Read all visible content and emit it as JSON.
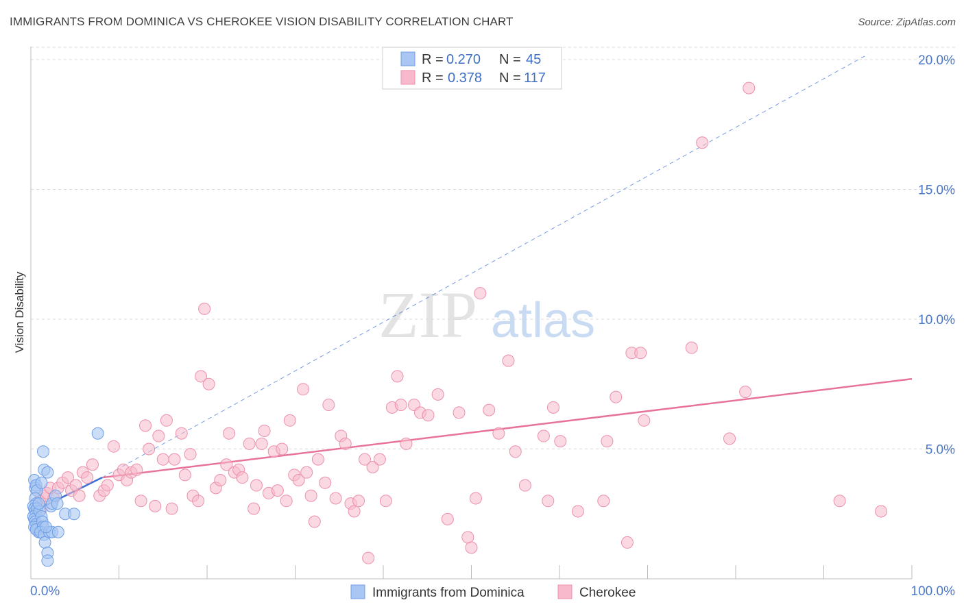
{
  "header": {
    "title": "IMMIGRANTS FROM DOMINICA VS CHEROKEE VISION DISABILITY CORRELATION CHART",
    "source": "Source: ZipAtlas.com"
  },
  "legend": {
    "r_label": "R =",
    "n_label": "N =",
    "series": [
      {
        "r": "0.270",
        "n": "45"
      },
      {
        "r": "0.378",
        "n": "117"
      }
    ]
  },
  "watermark": {
    "zip": "ZIP",
    "atlas": "atlas"
  },
  "colors": {
    "blue_fill": "#a9c7f2",
    "blue_stroke": "#6d9ee6",
    "blue_line": "#3b6fd6",
    "pink_fill": "#f7b9cb",
    "pink_stroke": "#ec8fab",
    "pink_line": "#e8739a",
    "grid": "#d8d8d8",
    "axis_text": "#4a78c8"
  },
  "chart_data": {
    "type": "scatter",
    "title": "IMMIGRANTS FROM DOMINICA VS CHEROKEE VISION DISABILITY CORRELATION CHART",
    "xlabel": "",
    "ylabel": "Vision Disability",
    "xlim": [
      0,
      100
    ],
    "ylim": [
      0,
      20.5
    ],
    "x_tick_labels": [
      "0.0%",
      "100.0%"
    ],
    "y_ticks": [
      5,
      10,
      15,
      20
    ],
    "y_tick_labels": [
      "5.0%",
      "10.0%",
      "15.0%",
      "20.0%"
    ],
    "series": [
      {
        "name": "Immigrants from Dominica",
        "R": 0.27,
        "N": 45,
        "trend": {
          "x": [
            0.3,
            8.1
          ],
          "y": [
            2.6,
            3.9
          ],
          "extended_x": [
            8.1,
            95
          ],
          "extended_y": [
            3.9,
            20.2
          ]
        },
        "points": [
          [
            0.4,
            3.8
          ],
          [
            0.5,
            3.5
          ],
          [
            0.6,
            3.6
          ],
          [
            0.7,
            3.4
          ],
          [
            0.5,
            3.1
          ],
          [
            0.6,
            2.9
          ],
          [
            0.3,
            2.8
          ],
          [
            0.4,
            2.7
          ],
          [
            0.5,
            2.6
          ],
          [
            0.6,
            2.5
          ],
          [
            0.7,
            2.7
          ],
          [
            0.3,
            2.4
          ],
          [
            0.4,
            2.3
          ],
          [
            0.5,
            2.2
          ],
          [
            0.6,
            2.1
          ],
          [
            0.7,
            2.0
          ],
          [
            0.8,
            1.9
          ],
          [
            0.9,
            1.8
          ],
          [
            0.4,
            2.0
          ],
          [
            0.6,
            1.9
          ],
          [
            1.0,
            2.6
          ],
          [
            1.2,
            2.4
          ],
          [
            1.3,
            2.2
          ],
          [
            1.4,
            2.0
          ],
          [
            1.1,
            1.8
          ],
          [
            1.5,
            1.7
          ],
          [
            1.6,
            1.4
          ],
          [
            1.9,
            1.0
          ],
          [
            1.9,
            0.7
          ],
          [
            1.2,
            3.7
          ],
          [
            1.5,
            4.2
          ],
          [
            1.9,
            4.1
          ],
          [
            1.4,
            4.9
          ],
          [
            2.3,
            2.8
          ],
          [
            2.4,
            2.9
          ],
          [
            2.8,
            3.2
          ],
          [
            3.0,
            2.9
          ],
          [
            2.1,
            1.8
          ],
          [
            2.4,
            1.8
          ],
          [
            3.1,
            1.8
          ],
          [
            3.9,
            2.5
          ],
          [
            4.9,
            2.5
          ],
          [
            7.6,
            5.6
          ],
          [
            0.9,
            2.9
          ],
          [
            1.7,
            2.0
          ]
        ]
      },
      {
        "name": "Cherokee",
        "R": 0.378,
        "N": 117,
        "trend": {
          "x": [
            8.1,
            100
          ],
          "y": [
            3.9,
            7.7
          ]
        },
        "points": [
          [
            1.0,
            3.0
          ],
          [
            1.2,
            2.7
          ],
          [
            1.5,
            3.2
          ],
          [
            1.8,
            3.3
          ],
          [
            2.2,
            3.5
          ],
          [
            2.6,
            3.1
          ],
          [
            3.1,
            3.5
          ],
          [
            3.6,
            3.7
          ],
          [
            4.2,
            3.9
          ],
          [
            4.6,
            3.4
          ],
          [
            5.1,
            3.6
          ],
          [
            5.5,
            3.2
          ],
          [
            5.9,
            4.1
          ],
          [
            6.4,
            3.9
          ],
          [
            7.0,
            4.4
          ],
          [
            7.8,
            3.2
          ],
          [
            8.3,
            3.4
          ],
          [
            8.7,
            3.6
          ],
          [
            9.4,
            5.1
          ],
          [
            10.0,
            4.0
          ],
          [
            10.5,
            4.2
          ],
          [
            10.9,
            3.8
          ],
          [
            11.4,
            4.1
          ],
          [
            12.0,
            4.2
          ],
          [
            12.5,
            3.0
          ],
          [
            13.0,
            5.9
          ],
          [
            13.4,
            5.0
          ],
          [
            14.1,
            2.8
          ],
          [
            14.5,
            5.5
          ],
          [
            15.0,
            4.6
          ],
          [
            15.4,
            6.1
          ],
          [
            16.0,
            2.7
          ],
          [
            16.3,
            4.6
          ],
          [
            17.1,
            5.6
          ],
          [
            17.5,
            4.0
          ],
          [
            18.1,
            4.8
          ],
          [
            18.4,
            3.2
          ],
          [
            19.0,
            3.0
          ],
          [
            19.3,
            7.8
          ],
          [
            19.7,
            10.4
          ],
          [
            20.2,
            7.5
          ],
          [
            21.0,
            3.5
          ],
          [
            21.5,
            3.8
          ],
          [
            22.2,
            4.4
          ],
          [
            22.5,
            5.6
          ],
          [
            23.1,
            4.1
          ],
          [
            23.6,
            4.2
          ],
          [
            24.0,
            3.9
          ],
          [
            24.8,
            5.2
          ],
          [
            25.3,
            2.7
          ],
          [
            25.6,
            3.6
          ],
          [
            26.2,
            5.2
          ],
          [
            26.5,
            5.7
          ],
          [
            27.0,
            3.3
          ],
          [
            27.6,
            4.9
          ],
          [
            28.0,
            3.4
          ],
          [
            28.5,
            5.0
          ],
          [
            29.0,
            3.0
          ],
          [
            29.4,
            6.1
          ],
          [
            29.9,
            4.0
          ],
          [
            30.4,
            3.8
          ],
          [
            30.9,
            7.3
          ],
          [
            31.3,
            4.1
          ],
          [
            31.8,
            3.2
          ],
          [
            32.2,
            2.2
          ],
          [
            32.6,
            4.6
          ],
          [
            33.4,
            3.7
          ],
          [
            33.8,
            6.7
          ],
          [
            34.6,
            3.1
          ],
          [
            35.2,
            5.5
          ],
          [
            35.7,
            5.2
          ],
          [
            36.3,
            2.9
          ],
          [
            36.7,
            2.6
          ],
          [
            37.2,
            3.0
          ],
          [
            37.9,
            4.6
          ],
          [
            38.3,
            0.8
          ],
          [
            38.8,
            4.3
          ],
          [
            39.6,
            4.6
          ],
          [
            40.3,
            3.0
          ],
          [
            41.0,
            6.6
          ],
          [
            41.6,
            7.8
          ],
          [
            42.0,
            6.7
          ],
          [
            42.6,
            5.2
          ],
          [
            43.5,
            6.7
          ],
          [
            44.2,
            6.4
          ],
          [
            45.1,
            6.3
          ],
          [
            46.2,
            7.1
          ],
          [
            47.3,
            2.3
          ],
          [
            48.6,
            6.4
          ],
          [
            49.6,
            1.6
          ],
          [
            50.0,
            1.2
          ],
          [
            50.5,
            3.1
          ],
          [
            51.0,
            11.0
          ],
          [
            52.0,
            6.5
          ],
          [
            53.1,
            5.6
          ],
          [
            54.2,
            8.4
          ],
          [
            55.0,
            4.9
          ],
          [
            56.1,
            3.6
          ],
          [
            58.2,
            5.5
          ],
          [
            58.7,
            3.0
          ],
          [
            59.3,
            6.6
          ],
          [
            60.1,
            5.3
          ],
          [
            62.1,
            2.6
          ],
          [
            65.0,
            3.0
          ],
          [
            65.4,
            5.3
          ],
          [
            66.4,
            7.0
          ],
          [
            67.7,
            1.4
          ],
          [
            68.2,
            8.7
          ],
          [
            69.2,
            8.7
          ],
          [
            69.6,
            6.1
          ],
          [
            75.0,
            8.9
          ],
          [
            76.2,
            16.8
          ],
          [
            79.3,
            5.4
          ],
          [
            81.1,
            7.2
          ],
          [
            81.5,
            18.9
          ],
          [
            91.8,
            3.0
          ],
          [
            96.5,
            2.6
          ]
        ]
      }
    ]
  },
  "bottom_legend": [
    "Immigrants from Dominica",
    "Cherokee"
  ]
}
